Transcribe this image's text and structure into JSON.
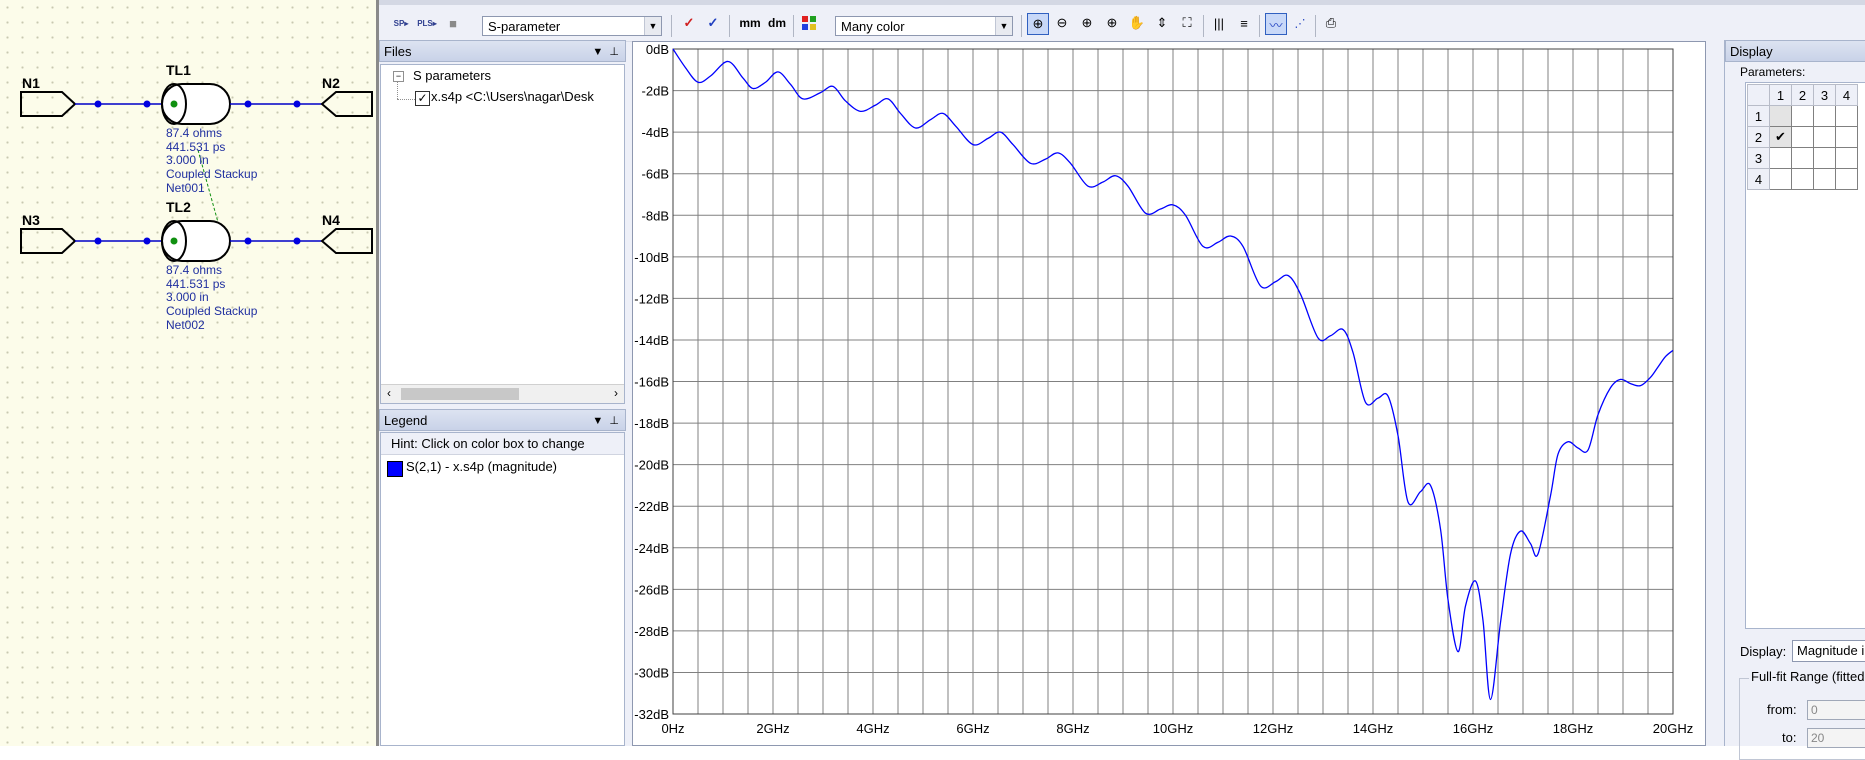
{
  "schematic": {
    "ports": [
      "N1",
      "N2",
      "N3",
      "N4"
    ],
    "lines": [
      {
        "name": "TL1",
        "impedance": "87.4 ohms",
        "delay": "441.531 ps",
        "length": "3.000 in",
        "stackup": "Coupled Stackup",
        "net": "Net001"
      },
      {
        "name": "TL2",
        "impedance": "87.4 ohms",
        "delay": "441.531 ps",
        "length": "3.000 in",
        "stackup": "Coupled Stackup",
        "net": "Net002"
      }
    ]
  },
  "toolbar": {
    "plot_type": "S-parameter",
    "units_mm": "mm",
    "units_dm": "dm",
    "color_mode": "Many color",
    "icons": [
      "open-sp-icon",
      "open-pls-icon",
      "save-icon",
      "check-red-icon",
      "check-blue-icon",
      "zoom-in-icon",
      "zoom-out-icon",
      "zoom-x-icon",
      "zoom-y-icon",
      "pan-icon",
      "fit-y-icon",
      "fit-all-icon",
      "vgrid-icon",
      "hgrid-icon",
      "line-plot-icon",
      "dot-plot-icon",
      "print-icon"
    ]
  },
  "files_panel": {
    "title": "Files",
    "tree_root": "S parameters",
    "tree_item": "x.s4p <C:\\Users\\nagar\\Desk"
  },
  "legend_panel": {
    "title": "Legend",
    "hint": "Hint:  Click on color box to change",
    "entries": [
      {
        "label": "S(2,1) - x.s4p (magnitude)",
        "color": "#0000ff"
      }
    ]
  },
  "display_panel": {
    "title": "Display",
    "parameters_label": "Parameters:",
    "cols": [
      "1",
      "2",
      "3",
      "4"
    ],
    "rows": [
      "1",
      "2",
      "3",
      "4"
    ],
    "checked": {
      "row": 2,
      "col": 1
    },
    "display_label": "Display:",
    "display_value": "Magnitude i",
    "fullfit_label": "Full-fit Range (fitted",
    "from_label": "from:",
    "from_value": "0",
    "to_label": "to:",
    "to_value": "20"
  },
  "chart_data": {
    "type": "line",
    "title": "",
    "xlabel": "",
    "ylabel": "",
    "xlim": [
      0,
      20
    ],
    "ylim": [
      -32,
      0
    ],
    "grid": true,
    "x_ticks": [
      "0Hz",
      "2GHz",
      "4GHz",
      "6GHz",
      "8GHz",
      "10GHz",
      "12GHz",
      "14GHz",
      "16GHz",
      "18GHz",
      "20GHz"
    ],
    "y_ticks": [
      "0dB",
      "-2dB",
      "-4dB",
      "-6dB",
      "-8dB",
      "-10dB",
      "-12dB",
      "-14dB",
      "-16dB",
      "-18dB",
      "-20dB",
      "-22dB",
      "-24dB",
      "-26dB",
      "-28dB",
      "-30dB",
      "-32dB"
    ],
    "series": [
      {
        "name": "S(2,1) - x.s4p (magnitude)",
        "color": "#0000ff",
        "x": [
          0,
          0.25,
          0.5,
          0.75,
          1.1,
          1.4,
          1.6,
          1.85,
          2.1,
          2.35,
          2.6,
          2.95,
          3.2,
          3.45,
          3.75,
          4.05,
          4.3,
          4.55,
          4.85,
          5.15,
          5.4,
          5.65,
          6.0,
          6.3,
          6.55,
          6.8,
          7.15,
          7.45,
          7.7,
          7.95,
          8.3,
          8.6,
          8.85,
          9.1,
          9.45,
          9.75,
          10.0,
          10.25,
          10.6,
          10.9,
          11.15,
          11.4,
          11.75,
          12.05,
          12.3,
          12.55,
          12.9,
          13.15,
          13.4,
          13.6,
          13.85,
          14.1,
          14.3,
          14.5,
          14.7,
          14.95,
          15.15,
          15.35,
          15.5,
          15.7,
          15.85,
          16.05,
          16.2,
          16.35,
          16.55,
          16.75,
          16.95,
          17.15,
          17.3,
          17.55,
          17.7,
          17.9,
          18.1,
          18.3,
          18.5,
          18.75,
          18.95,
          19.15,
          19.35,
          19.55,
          19.7,
          19.85,
          20.0
        ],
        "y": [
          0.0,
          -0.9,
          -1.6,
          -1.3,
          -0.6,
          -1.4,
          -1.9,
          -1.6,
          -1.1,
          -1.7,
          -2.4,
          -2.1,
          -1.8,
          -2.5,
          -3.0,
          -2.7,
          -2.4,
          -3.1,
          -3.8,
          -3.4,
          -3.1,
          -3.7,
          -4.6,
          -4.3,
          -4.0,
          -4.6,
          -5.5,
          -5.3,
          -5.0,
          -5.5,
          -6.6,
          -6.4,
          -6.1,
          -6.6,
          -7.9,
          -7.7,
          -7.5,
          -8.0,
          -9.5,
          -9.3,
          -9.0,
          -9.5,
          -11.4,
          -11.2,
          -10.9,
          -11.8,
          -13.9,
          -13.8,
          -13.5,
          -14.6,
          -17.0,
          -16.8,
          -16.7,
          -18.6,
          -21.8,
          -21.3,
          -21.0,
          -23.1,
          -26.5,
          -29.0,
          -26.8,
          -25.6,
          -27.5,
          -31.3,
          -27.6,
          -24.3,
          -23.2,
          -23.8,
          -24.3,
          -21.5,
          -19.5,
          -18.9,
          -19.2,
          -19.3,
          -17.6,
          -16.3,
          -15.9,
          -16.1,
          -16.2,
          -15.8,
          -15.3,
          -14.8,
          -14.5
        ]
      }
    ]
  }
}
